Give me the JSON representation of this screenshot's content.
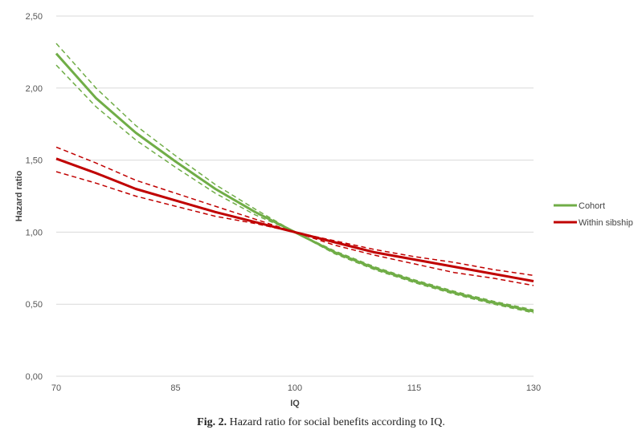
{
  "chart_data": {
    "type": "line",
    "xlabel": "IQ",
    "ylabel": "Hazard ratio",
    "xlim": [
      70,
      130
    ],
    "ylim": [
      0,
      2.5
    ],
    "xticks": [
      70,
      85,
      100,
      115,
      130
    ],
    "yticks": [
      0,
      0.5,
      1.0,
      1.5,
      2.0,
      2.5
    ],
    "ytick_labels": [
      "0,00",
      "0,50",
      "1,00",
      "1,50",
      "2,00",
      "2,50"
    ],
    "xtick_labels": [
      "70",
      "85",
      "100",
      "115",
      "130"
    ],
    "grid": "horizontal",
    "legend_position": "right",
    "colors": {
      "Cohort": "#70ad47",
      "Within sibship": "#c00000"
    },
    "series": [
      {
        "name": "Cohort",
        "x": [
          70,
          75,
          80,
          85,
          90,
          95,
          100,
          105,
          110,
          115,
          120,
          125,
          130
        ],
        "values": [
          2.24,
          1.93,
          1.69,
          1.49,
          1.3,
          1.14,
          1.0,
          0.86,
          0.75,
          0.66,
          0.58,
          0.51,
          0.45
        ],
        "ci_lower": [
          2.16,
          1.87,
          1.64,
          1.45,
          1.27,
          1.12,
          1.0,
          0.85,
          0.74,
          0.65,
          0.57,
          0.5,
          0.44
        ],
        "ci_upper": [
          2.31,
          2.0,
          1.74,
          1.53,
          1.33,
          1.16,
          1.0,
          0.87,
          0.76,
          0.67,
          0.59,
          0.52,
          0.46
        ]
      },
      {
        "name": "Within sibship",
        "x": [
          70,
          75,
          80,
          85,
          90,
          95,
          100,
          105,
          110,
          115,
          120,
          125,
          130
        ],
        "values": [
          1.51,
          1.41,
          1.3,
          1.22,
          1.14,
          1.07,
          1.0,
          0.93,
          0.86,
          0.81,
          0.76,
          0.71,
          0.66
        ],
        "ci_lower": [
          1.42,
          1.34,
          1.25,
          1.18,
          1.11,
          1.06,
          1.0,
          0.91,
          0.84,
          0.78,
          0.72,
          0.68,
          0.63
        ],
        "ci_upper": [
          1.59,
          1.48,
          1.36,
          1.27,
          1.18,
          1.09,
          1.0,
          0.94,
          0.88,
          0.83,
          0.79,
          0.74,
          0.7
        ]
      }
    ]
  },
  "caption": {
    "label": "Fig. 2.",
    "text": "Hazard ratio for social benefits according to IQ."
  }
}
